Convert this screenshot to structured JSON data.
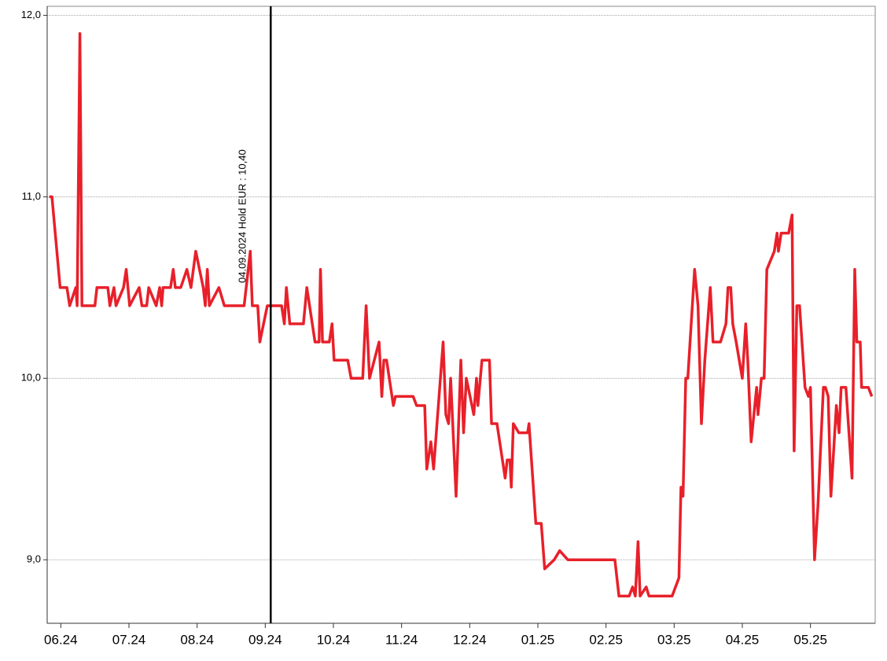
{
  "chart_data": {
    "type": "line",
    "x": [
      -0.17,
      -0.13,
      -0.01,
      0.09,
      0.13,
      0.22,
      0.24,
      0.28,
      0.31,
      0.5,
      0.53,
      0.69,
      0.72,
      0.78,
      0.81,
      0.92,
      0.96,
      1.01,
      1.15,
      1.19,
      1.26,
      1.29,
      1.4,
      1.45,
      1.48,
      1.5,
      1.61,
      1.65,
      1.68,
      1.76,
      1.85,
      1.91,
      1.98,
      2.09,
      2.12,
      2.15,
      2.18,
      2.32,
      2.4,
      2.69,
      2.78,
      2.81,
      2.89,
      2.92,
      3.03,
      3.24,
      3.28,
      3.31,
      3.36,
      3.56,
      3.61,
      3.73,
      3.79,
      3.81,
      3.84,
      3.94,
      3.98,
      4.01,
      4.21,
      4.26,
      4.43,
      4.48,
      4.53,
      4.67,
      4.71,
      4.74,
      4.78,
      4.88,
      4.91,
      5.17,
      5.22,
      5.34,
      5.37,
      5.43,
      5.47,
      5.61,
      5.65,
      5.69,
      5.72,
      5.8,
      5.87,
      5.91,
      5.95,
      6.06,
      6.1,
      6.12,
      6.18,
      6.29,
      6.32,
      6.4,
      6.52,
      6.55,
      6.59,
      6.61,
      6.64,
      6.72,
      6.85,
      6.87,
      6.97,
      7.05,
      7.1,
      7.24,
      7.32,
      7.44,
      8.13,
      8.19,
      8.34,
      8.39,
      8.43,
      8.47,
      8.5,
      8.59,
      8.63,
      8.97,
      9.07,
      9.1,
      9.13,
      9.17,
      9.2,
      9.3,
      9.35,
      9.4,
      9.45,
      9.53,
      9.57,
      9.68,
      9.76,
      9.79,
      9.83,
      9.86,
      9.91,
      10.0,
      10.05,
      10.08,
      10.13,
      10.21,
      10.23,
      10.28,
      10.32,
      10.36,
      10.47,
      10.51,
      10.53,
      10.57,
      10.68,
      10.73,
      10.76,
      10.8,
      10.84,
      10.92,
      10.97,
      11.0,
      11.06,
      11.11,
      11.19,
      11.22,
      11.26,
      11.3,
      11.38,
      11.42,
      11.45,
      11.52,
      11.61,
      11.65,
      11.68,
      11.73,
      11.75,
      11.85,
      11.9
    ],
    "series": [
      {
        "color": "#e8202a",
        "values": [
          11.0,
          11.0,
          10.5,
          10.5,
          10.4,
          10.5,
          10.4,
          11.9,
          10.4,
          10.4,
          10.5,
          10.5,
          10.4,
          10.5,
          10.4,
          10.5,
          10.6,
          10.4,
          10.5,
          10.4,
          10.4,
          10.5,
          10.4,
          10.5,
          10.4,
          10.5,
          10.5,
          10.6,
          10.5,
          10.5,
          10.6,
          10.5,
          10.7,
          10.5,
          10.4,
          10.6,
          10.4,
          10.5,
          10.4,
          10.4,
          10.7,
          10.4,
          10.4,
          10.2,
          10.4,
          10.4,
          10.3,
          10.5,
          10.3,
          10.3,
          10.5,
          10.2,
          10.2,
          10.6,
          10.2,
          10.2,
          10.3,
          10.1,
          10.1,
          10.0,
          10.0,
          10.4,
          10.0,
          10.2,
          9.9,
          10.1,
          10.1,
          9.85,
          9.9,
          9.9,
          9.85,
          9.85,
          9.5,
          9.65,
          9.5,
          10.2,
          9.8,
          9.75,
          10.0,
          9.35,
          10.1,
          9.7,
          10.0,
          9.8,
          10.0,
          9.85,
          10.1,
          10.1,
          9.75,
          9.75,
          9.45,
          9.55,
          9.55,
          9.4,
          9.75,
          9.7,
          9.7,
          9.75,
          9.2,
          9.2,
          8.95,
          9.0,
          9.05,
          9.0,
          9.0,
          8.8,
          8.8,
          8.85,
          8.8,
          9.1,
          8.8,
          8.85,
          8.8,
          8.8,
          8.9,
          9.4,
          9.35,
          10.0,
          10.0,
          10.6,
          10.4,
          9.75,
          10.1,
          10.5,
          10.2,
          10.2,
          10.3,
          10.5,
          10.5,
          10.3,
          10.2,
          10.0,
          10.3,
          10.1,
          9.65,
          9.95,
          9.8,
          10.0,
          10.0,
          10.6,
          10.7,
          10.8,
          10.7,
          10.8,
          10.8,
          10.9,
          9.6,
          10.4,
          10.4,
          9.95,
          9.9,
          9.95,
          9.0,
          9.3,
          9.95,
          9.95,
          9.9,
          9.35,
          9.85,
          9.7,
          9.95,
          9.95,
          9.45,
          10.6,
          10.2,
          10.2,
          9.95,
          9.95,
          9.9
        ]
      }
    ],
    "xlim": [
      -0.2,
      11.95
    ],
    "xticks": [
      {
        "value": 0,
        "label": "06.24"
      },
      {
        "value": 1,
        "label": "07.24"
      },
      {
        "value": 2,
        "label": "08.24"
      },
      {
        "value": 3,
        "label": "09.24"
      },
      {
        "value": 4,
        "label": "10.24"
      },
      {
        "value": 5,
        "label": "11.24"
      },
      {
        "value": 6,
        "label": "12.24"
      },
      {
        "value": 7,
        "label": "01.25"
      },
      {
        "value": 8,
        "label": "02.25"
      },
      {
        "value": 9,
        "label": "03.25"
      },
      {
        "value": 10,
        "label": "04.25"
      },
      {
        "value": 11,
        "label": "05.25"
      }
    ],
    "ylim": [
      8.65,
      12.05
    ],
    "yticks": [
      {
        "value": 9,
        "label": "9,0"
      },
      {
        "value": 10,
        "label": "10,0"
      },
      {
        "value": 11,
        "label": "11,0"
      },
      {
        "value": 12,
        "label": "12,0"
      }
    ],
    "grid": true,
    "marker": {
      "x": 3.08,
      "label": "04.09.2024 Hold EUR : 10,40"
    }
  }
}
